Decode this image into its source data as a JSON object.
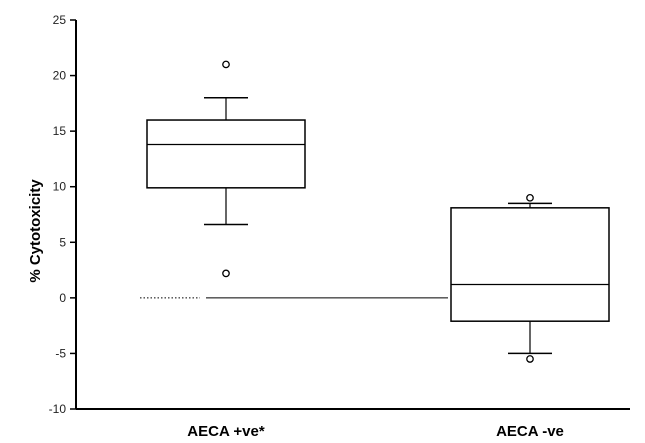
{
  "chart_data": {
    "type": "box",
    "ylabel": "% Cytotoxicity",
    "xlabel": "",
    "ylim": [
      -10,
      25
    ],
    "yticks": [
      -10,
      -5,
      0,
      5,
      10,
      15,
      20,
      25
    ],
    "grid": false,
    "categories": [
      "AECA +ve*",
      "AECA -ve"
    ],
    "boxes": [
      {
        "category": "AECA +ve*",
        "whisker_low": 6.6,
        "q1": 9.9,
        "median": 13.8,
        "q3": 16.0,
        "whisker_high": 18.0,
        "outliers": [
          21.0,
          2.2
        ]
      },
      {
        "category": "AECA -ve",
        "whisker_low": -5.0,
        "q1": -2.1,
        "median": 1.2,
        "q3": 8.1,
        "whisker_high": 8.5,
        "outliers": [
          9.0,
          -5.5
        ]
      }
    ],
    "reference_line": 0
  },
  "colors": {
    "ink": "#000000",
    "background": "#ffffff"
  }
}
